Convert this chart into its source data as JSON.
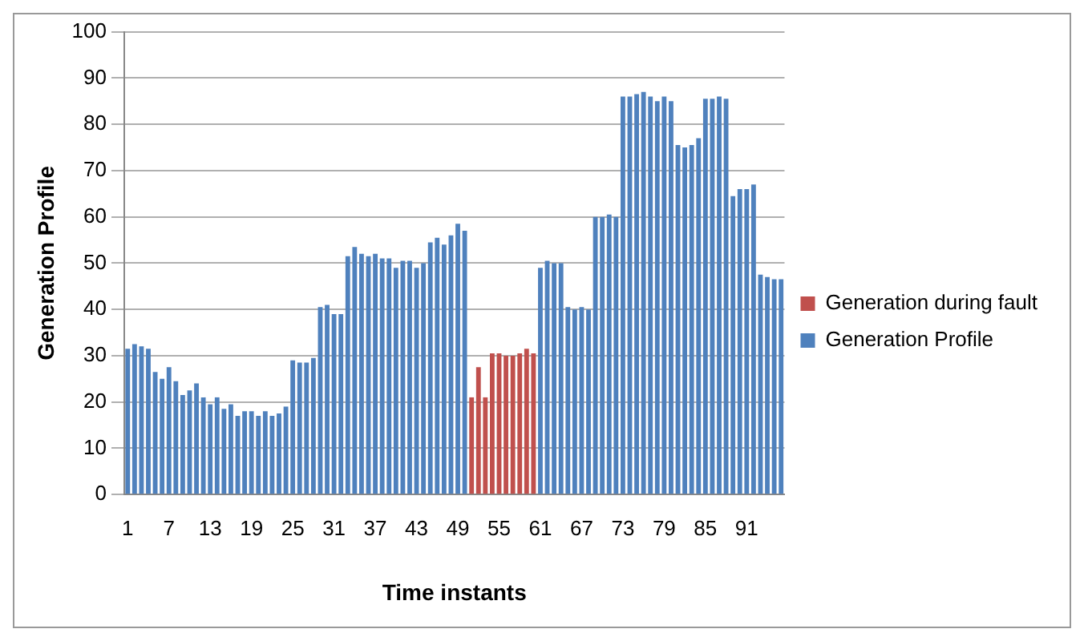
{
  "chart_data": {
    "type": "bar",
    "xlabel": "Time instants",
    "ylabel": "Generation Profile",
    "categories": [
      "1",
      null,
      null,
      null,
      null,
      null,
      "7",
      null,
      null,
      null,
      null,
      null,
      "13",
      null,
      null,
      null,
      null,
      null,
      "19",
      null,
      null,
      null,
      null,
      null,
      "25",
      null,
      null,
      null,
      null,
      null,
      "31",
      null,
      null,
      null,
      null,
      null,
      "37",
      null,
      null,
      null,
      null,
      null,
      "43",
      null,
      null,
      null,
      null,
      null,
      "49",
      null,
      null,
      null,
      null,
      null,
      "55",
      null,
      null,
      null,
      null,
      null,
      "61",
      null,
      null,
      null,
      null,
      null,
      "67",
      null,
      null,
      null,
      null,
      null,
      "73",
      null,
      null,
      null,
      null,
      null,
      "79",
      null,
      null,
      null,
      null,
      null,
      "85",
      null,
      null,
      null,
      null,
      null,
      "91",
      null,
      null,
      null,
      null,
      null
    ],
    "series": [
      {
        "name": "Generation during fault",
        "color": "#c0504d",
        "values": [
          null,
          null,
          null,
          null,
          null,
          null,
          null,
          null,
          null,
          null,
          null,
          null,
          null,
          null,
          null,
          null,
          null,
          null,
          null,
          null,
          null,
          null,
          null,
          null,
          null,
          null,
          null,
          null,
          null,
          null,
          null,
          null,
          null,
          null,
          null,
          null,
          null,
          null,
          null,
          null,
          null,
          null,
          null,
          null,
          null,
          null,
          null,
          null,
          null,
          null,
          21,
          27.5,
          21,
          30.5,
          30.5,
          30,
          30,
          30.5,
          31.5,
          30.5,
          null,
          null,
          null,
          null,
          null,
          null,
          null,
          null,
          null,
          null,
          null,
          null,
          null,
          null,
          null,
          null,
          null,
          null,
          null,
          null,
          null,
          null,
          null,
          null,
          null,
          null,
          null,
          null,
          null,
          null,
          null,
          null,
          null,
          null,
          null,
          null
        ]
      },
      {
        "name": "Generation Profile",
        "color": "#4f81bd",
        "values": [
          31.5,
          32.5,
          32,
          31.5,
          26.5,
          25,
          27.5,
          24.5,
          21.5,
          22.5,
          24,
          21,
          19.5,
          21,
          18.5,
          19.5,
          17,
          18,
          18,
          17,
          18,
          17,
          17.5,
          19,
          29,
          28.5,
          28.5,
          29.5,
          40.5,
          41,
          39,
          39,
          51.5,
          53.5,
          52,
          51.5,
          52,
          51,
          51,
          49,
          50.5,
          50.5,
          49,
          50,
          54.5,
          55.5,
          54,
          56,
          58.5,
          57,
          null,
          null,
          null,
          null,
          null,
          null,
          null,
          null,
          null,
          null,
          49,
          50.5,
          50,
          50,
          40.5,
          40,
          40.5,
          40,
          60,
          60,
          60.5,
          60,
          86,
          86,
          86.5,
          87,
          86,
          85,
          86,
          85,
          75.5,
          75,
          75.5,
          77,
          85.5,
          85.5,
          86,
          85.5,
          64.5,
          66,
          66,
          67,
          47.5,
          47,
          46.5,
          46.5
        ]
      }
    ],
    "ylim": [
      0,
      100
    ],
    "yticks": [
      0,
      10,
      20,
      30,
      40,
      50,
      60,
      70,
      80,
      90,
      100
    ],
    "grid": "y",
    "legend": "right"
  }
}
